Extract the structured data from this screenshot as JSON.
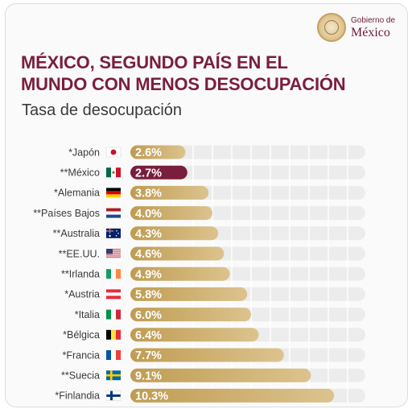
{
  "header": {
    "logo_top": "Gobierno de",
    "logo_main": "México",
    "title_line1": "MÉXICO, SEGUNDO PAÍS EN EL",
    "title_line2": "MUNDO CON MENOS DESOCUPACIÓN",
    "subtitle": "Tasa de desocupación"
  },
  "colors": {
    "highlight": "#7a1e3d",
    "bar_gold": "#c4a35c",
    "bar_gold_light": "#e6d3a6",
    "track": "#ececec",
    "label": "#3a3a3a"
  },
  "chart_data": {
    "type": "bar",
    "orientation": "horizontal",
    "title": "MÉXICO, SEGUNDO PAÍS EN EL MUNDO CON MENOS DESOCUPACIÓN",
    "subtitle": "Tasa de desocupación",
    "categories": [
      "*Japón",
      "**México",
      "*Alemania",
      "**Países Bajos",
      "**Australia",
      "**EE.UU.",
      "**Irlanda",
      "*Austria",
      "*Italia",
      "*Bélgica",
      "*Francia",
      "**Suecia",
      "*Finlandia"
    ],
    "flags": [
      "japan",
      "mexico",
      "germany",
      "netherlands",
      "australia",
      "usa",
      "ireland",
      "austria",
      "italy",
      "belgium",
      "france",
      "sweden",
      "finland"
    ],
    "values": [
      2.6,
      2.7,
      3.8,
      4.0,
      4.3,
      4.6,
      4.9,
      5.8,
      6.0,
      6.4,
      7.7,
      9.1,
      10.3
    ],
    "value_labels": [
      "2.6%",
      "2.7%",
      "3.8%",
      "4.0%",
      "4.3%",
      "4.6%",
      "4.9%",
      "5.8%",
      "6.0%",
      "6.4%",
      "7.7%",
      "9.1%",
      "10.3%"
    ],
    "highlight_category": "**México",
    "xlim": [
      0,
      12
    ],
    "grid": true,
    "legend": "none"
  }
}
